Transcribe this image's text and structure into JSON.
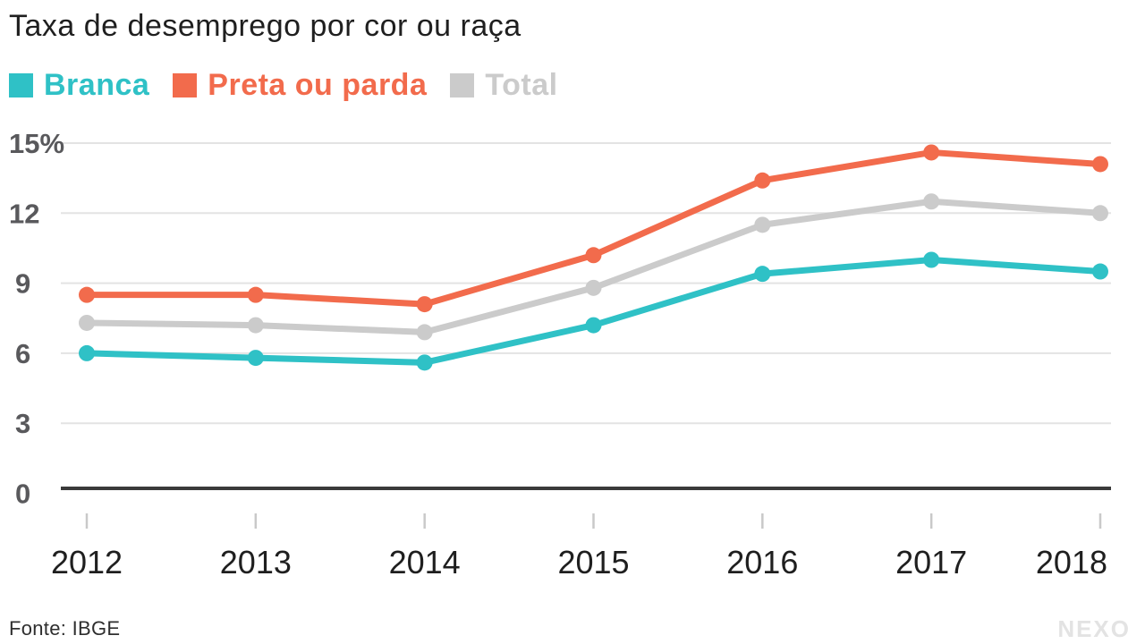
{
  "title": "Taxa de desemprego por cor ou raça",
  "source": "Fonte: IBGE",
  "brand": "NEXO",
  "colors": {
    "branca": "#2FC1C6",
    "preta_ou_parda": "#F26B4C",
    "total": "#CBCBCB",
    "grid": "#E3E3E3",
    "axis": "#3A3A3A",
    "tick": "#C9C9C9",
    "y_label": "#59595C",
    "x_label": "#1F1F1F",
    "title_text": "#1F1F1F",
    "brand_text": "#E3E3E3"
  },
  "chart_data": {
    "type": "line",
    "x": [
      2012,
      2013,
      2014,
      2015,
      2016,
      2017,
      2018
    ],
    "series": [
      {
        "name": "Branca",
        "color": "#2FC1C6",
        "values": [
          6.0,
          5.8,
          5.6,
          7.2,
          9.4,
          10.0,
          9.5
        ]
      },
      {
        "name": "Preta ou parda",
        "color": "#F26B4C",
        "values": [
          8.5,
          8.5,
          8.1,
          10.2,
          13.4,
          14.6,
          14.1
        ]
      },
      {
        "name": "Total",
        "color": "#CBCBCB",
        "values": [
          7.3,
          7.2,
          6.9,
          8.8,
          11.5,
          12.5,
          12.0
        ]
      }
    ],
    "ylim": [
      0,
      15
    ],
    "yticks": [
      0,
      3,
      6,
      9,
      12,
      15
    ],
    "ytick_labels": [
      "0",
      "3",
      "6",
      "9",
      "12",
      "15%"
    ],
    "grid": "horizontal",
    "legend_position": "top-left",
    "marker": "circle"
  }
}
